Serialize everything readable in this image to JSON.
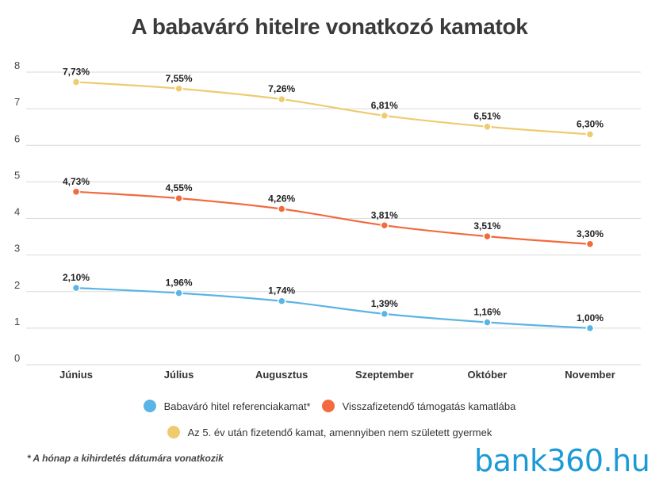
{
  "chart_data": {
    "type": "line",
    "title": "A babaváró hitelre vonatkozó kamatok",
    "categories": [
      "Június",
      "Július",
      "Augusztus",
      "Szeptember",
      "Október",
      "November"
    ],
    "yticks": [
      "0",
      "1",
      "2",
      "3",
      "4",
      "5",
      "6",
      "7",
      "8"
    ],
    "ylim": [
      0,
      8
    ],
    "grid": true,
    "legend_position": "bottom",
    "series": [
      {
        "name": "Az 5. év után fizetendő kamat, amennyiben nem született gyermek",
        "color": "#eecb6e",
        "values": [
          7.73,
          7.55,
          7.26,
          6.81,
          6.51,
          6.3
        ],
        "labels": [
          "7,73%",
          "7,55%",
          "7,26%",
          "6,81%",
          "6,51%",
          "6,30%"
        ]
      },
      {
        "name": "Visszafizetendő támogatás kamatlába",
        "color": "#f26a3d",
        "values": [
          4.73,
          4.55,
          4.26,
          3.81,
          3.51,
          3.3
        ],
        "labels": [
          "4,73%",
          "4,55%",
          "4,26%",
          "3,81%",
          "3,51%",
          "3,30%"
        ]
      },
      {
        "name": "Babaváró hitel referenciakamat*",
        "color": "#5ab4e5",
        "values": [
          2.1,
          1.96,
          1.74,
          1.39,
          1.16,
          1.0
        ],
        "labels": [
          "2,10%",
          "1,96%",
          "1,74%",
          "1,39%",
          "1,16%",
          "1,00%"
        ]
      }
    ]
  },
  "legend": {
    "row1": [
      {
        "label": "Babaváró hitel referenciakamat*",
        "color": "#5ab4e5"
      },
      {
        "label": "Visszafizetendő támogatás kamatlába",
        "color": "#f26a3d"
      }
    ],
    "row2": [
      {
        "label": "Az 5. év után fizetendő kamat, amennyiben nem született gyermek",
        "color": "#eecb6e"
      }
    ]
  },
  "footnote": "* A hónap a kihirdetés dátumára vonatkozik",
  "logo": "bank360.hu"
}
